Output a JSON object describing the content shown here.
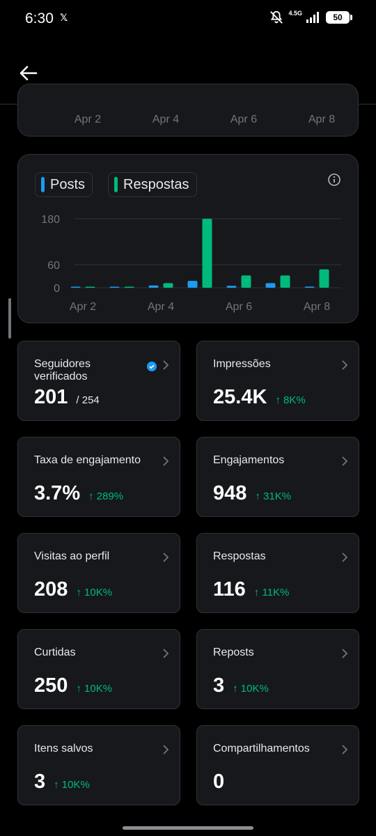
{
  "status_bar": {
    "time": "6:30",
    "app_icon": "x-logo",
    "network": "4.5G",
    "battery": "50"
  },
  "header": {
    "back_icon": "back-arrow-icon"
  },
  "top_chart": {
    "ticks": [
      "Apr 2",
      "Apr 4",
      "Apr 6",
      "Apr 8"
    ]
  },
  "legend": {
    "posts": "Posts",
    "respostas": "Respostas",
    "info_icon": "info-icon"
  },
  "colors": {
    "posts": "#1d9bf0",
    "respostas": "#00ba7c",
    "card_bg": "#16181c",
    "border": "#2f3336"
  },
  "chart_data": {
    "type": "bar",
    "categories": [
      "Apr 2",
      "Apr 3",
      "Apr 4",
      "Apr 5",
      "Apr 6",
      "Apr 7",
      "Apr 8"
    ],
    "series": [
      {
        "name": "Posts",
        "values": [
          1,
          0,
          6,
          18,
          5,
          12,
          3
        ]
      },
      {
        "name": "Respostas",
        "values": [
          1,
          0,
          12,
          180,
          32,
          32,
          48
        ]
      }
    ],
    "ylim": [
      0,
      180
    ],
    "yticks": [
      0,
      60,
      180
    ],
    "xtick_labels": [
      "Apr 2",
      "Apr 4",
      "Apr 6",
      "Apr 8"
    ],
    "grid": true
  },
  "metrics": [
    {
      "label": "Seguidores verificados",
      "value": "201",
      "sub": "/ 254",
      "delta": "",
      "verified": true
    },
    {
      "label": "Impressões",
      "value": "25.4K",
      "sub": "",
      "delta": "↑ 8K%"
    },
    {
      "label": "Taxa de engajamento",
      "value": "3.7%",
      "sub": "",
      "delta": "↑ 289%"
    },
    {
      "label": "Engajamentos",
      "value": "948",
      "sub": "",
      "delta": "↑ 31K%"
    },
    {
      "label": "Visitas ao perfil",
      "value": "208",
      "sub": "",
      "delta": "↑ 10K%"
    },
    {
      "label": "Respostas",
      "value": "116",
      "sub": "",
      "delta": "↑ 11K%"
    },
    {
      "label": "Curtidas",
      "value": "250",
      "sub": "",
      "delta": "↑ 10K%"
    },
    {
      "label": "Reposts",
      "value": "3",
      "sub": "",
      "delta": "↑ 10K%"
    },
    {
      "label": "Itens salvos",
      "value": "3",
      "sub": "",
      "delta": "↑ 10K%"
    },
    {
      "label": "Compartilhamentos",
      "value": "0",
      "sub": "",
      "delta": ""
    }
  ]
}
